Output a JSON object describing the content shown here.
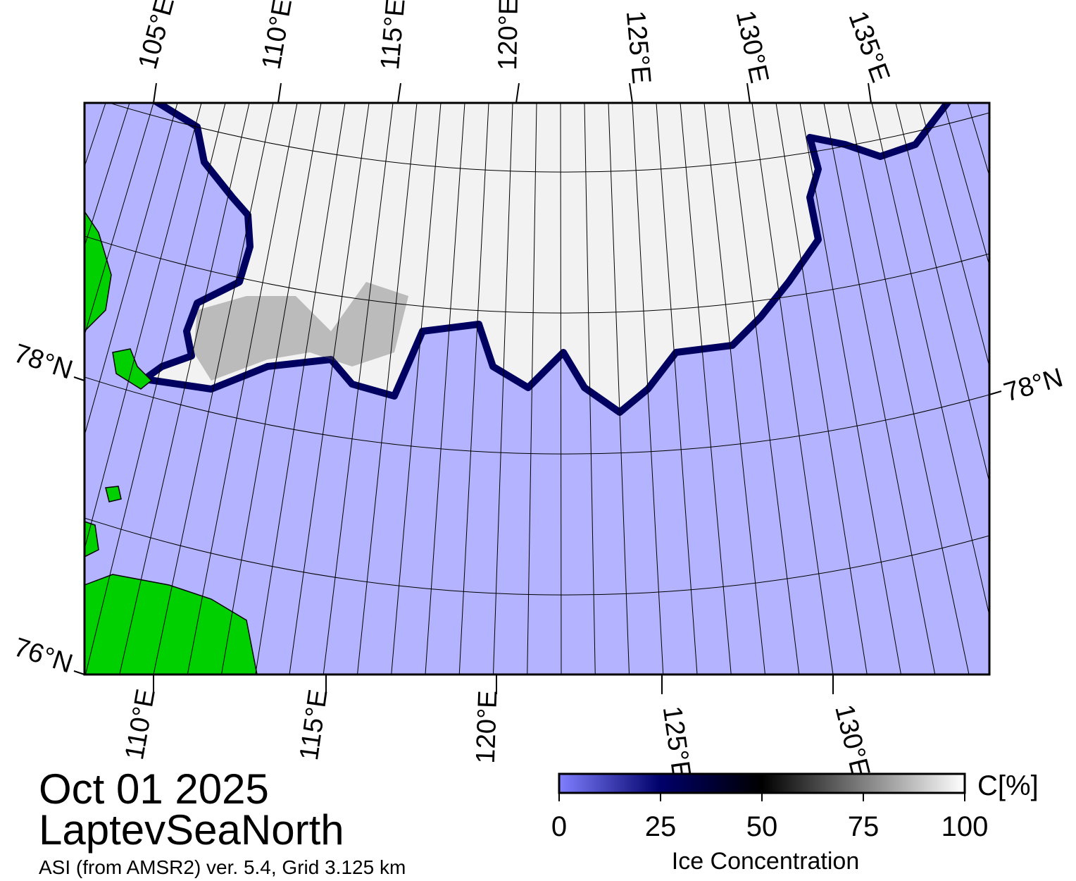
{
  "map": {
    "top_labels": [
      "105°E",
      "110°E",
      "115°E",
      "120°E",
      "125°E",
      "130°E",
      "135°E"
    ],
    "bottom_labels": [
      "110°E",
      "115°E",
      "120°E",
      "125°E",
      "130°E"
    ],
    "left_labels": [
      "78°N",
      "76°N"
    ],
    "right_labels": [
      "78°N"
    ]
  },
  "date": "Oct 01 2025",
  "region": "LaptevSeaNorth",
  "source": "ASI (from AMSR2) ver. 5.4,  Grid 3.125 km",
  "colorbar": {
    "ticks": [
      0,
      25,
      50,
      75,
      100
    ],
    "lim": [
      0,
      100
    ],
    "unit_label": "C[%]",
    "title": "Ice Concentration"
  }
}
